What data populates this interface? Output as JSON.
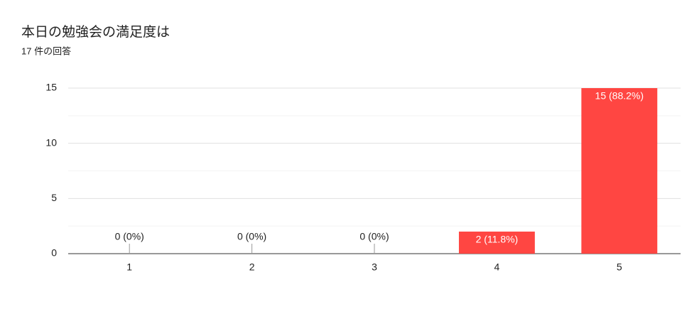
{
  "chart_data": {
    "type": "bar",
    "title": "本日の勉強会の満足度は",
    "subtitle": "17 件の回答",
    "categories": [
      "1",
      "2",
      "3",
      "4",
      "5"
    ],
    "values": [
      0,
      0,
      0,
      2,
      15
    ],
    "value_labels": [
      "0 (0%)",
      "0 (0%)",
      "0 (0%)",
      "2 (11.8%)",
      "15 (88.2%)"
    ],
    "color": "#ff4642",
    "ylim": [
      0,
      15
    ],
    "yticks": [
      0,
      5,
      10,
      15
    ],
    "minor_yticks": [
      2.5,
      7.5,
      12.5
    ],
    "grid": true
  }
}
